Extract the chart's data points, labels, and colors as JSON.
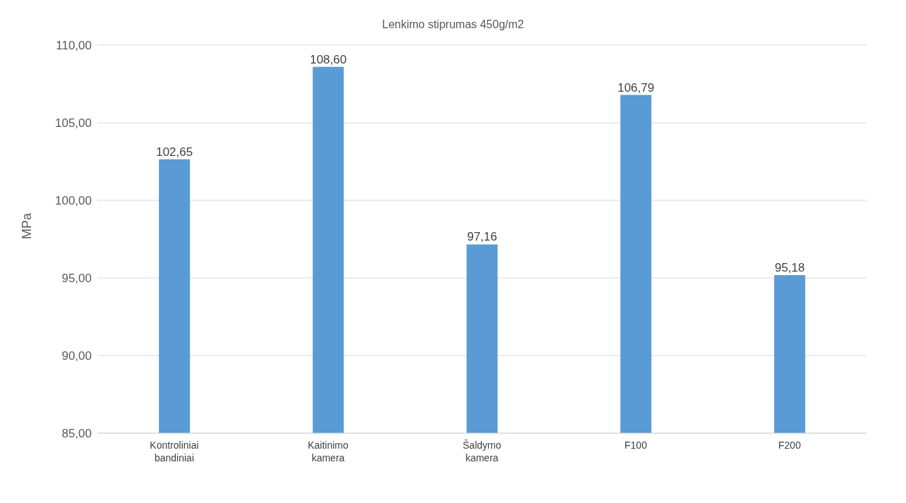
{
  "chart_data": {
    "type": "bar",
    "title": "Lenkimo stiprumas 450g/m2",
    "ylabel": "MPa",
    "categories": [
      "Kontroliniai bandiniai",
      "Kaitinimo kamera",
      "Šaldymo kamera",
      "F100",
      "F200"
    ],
    "values": [
      102.65,
      108.6,
      97.16,
      106.79,
      95.18
    ],
    "value_labels": [
      "102,65",
      "108,60",
      "97,16",
      "106,79",
      "95,18"
    ],
    "color": "#5b9bd5",
    "ylim": [
      85,
      110
    ],
    "yticks": [
      {
        "value": 85,
        "label": "85,00"
      },
      {
        "value": 90,
        "label": "90,00"
      },
      {
        "value": 95,
        "label": "95,00"
      },
      {
        "value": 100,
        "label": "100,00"
      },
      {
        "value": 105,
        "label": "105,00"
      },
      {
        "value": 110,
        "label": "110,00"
      }
    ],
    "grid": "y"
  }
}
